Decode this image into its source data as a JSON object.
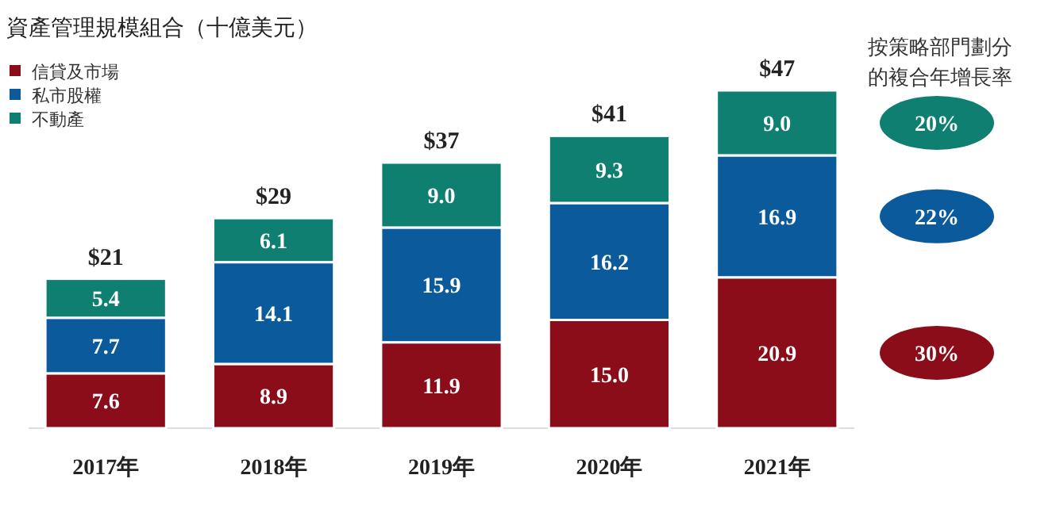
{
  "chart_data": {
    "type": "bar",
    "stacked": true,
    "title": "資產管理規模組合（十億美元）",
    "categories": [
      "2017年",
      "2018年",
      "2019年",
      "2020年",
      "2021年"
    ],
    "series": [
      {
        "name": "信貸及市場",
        "color": "#8b0d1a",
        "values": [
          7.6,
          8.9,
          11.9,
          15.0,
          20.9
        ],
        "value_labels": [
          "7.6",
          "8.9",
          "11.9",
          "15.0",
          "20.9"
        ]
      },
      {
        "name": "私市股權",
        "color": "#0a5a9c",
        "values": [
          7.7,
          14.1,
          15.9,
          16.2,
          16.9
        ],
        "value_labels": [
          "7.7",
          "14.1",
          "15.9",
          "16.2",
          "16.9"
        ]
      },
      {
        "name": "不動產",
        "color": "#0e7f70",
        "values": [
          5.4,
          6.1,
          9.0,
          9.3,
          9.0
        ],
        "value_labels": [
          "5.4",
          "6.1",
          "9.0",
          "9.3",
          "9.0"
        ]
      }
    ],
    "totals": [
      "$21",
      "$29",
      "$37",
      "$41",
      "$47"
    ],
    "legend": "top left",
    "annotations": [
      "按策略部門劃分的複合年增長率",
      "30%",
      "22%",
      "20%"
    ]
  }
}
